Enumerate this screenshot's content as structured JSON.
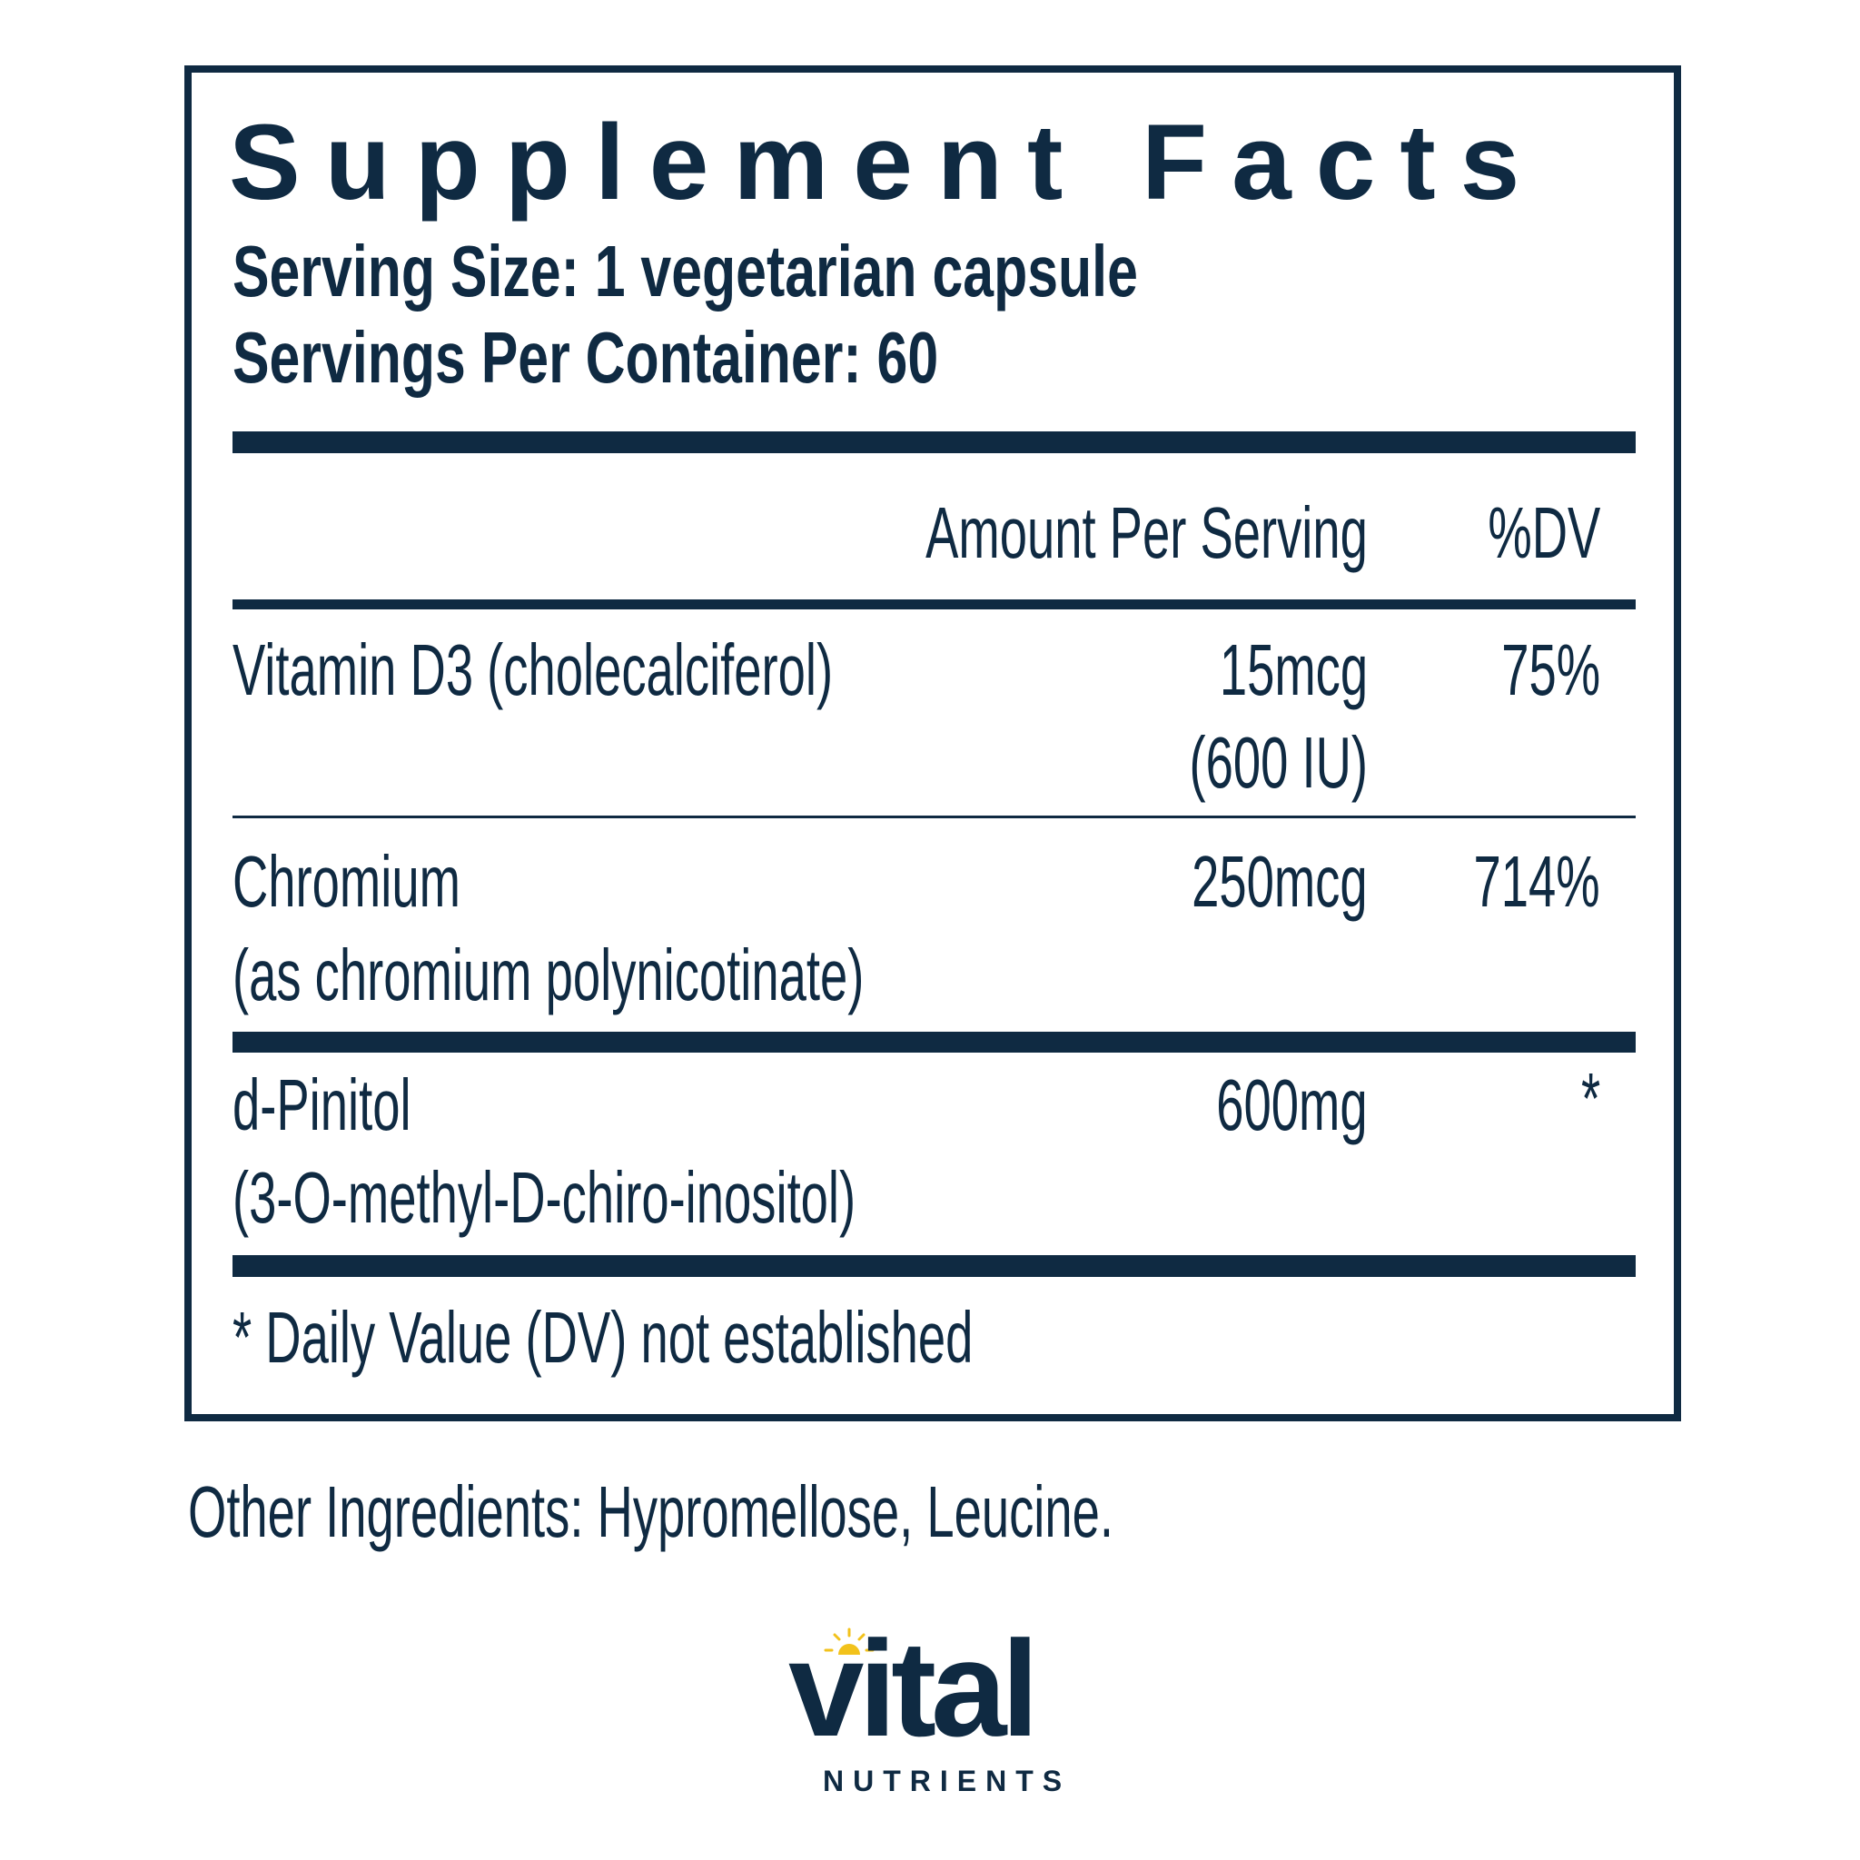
{
  "title": "Supplement Facts",
  "serving_size": "Serving Size: 1 vegetarian capsule",
  "servings_per_container": "Servings Per Container: 60",
  "header": {
    "amount": "Amount Per Serving",
    "dv": "%DV"
  },
  "rows": [
    {
      "name": "Vitamin D3 (cholecalciferol)",
      "sub": "",
      "amount": "15mcg",
      "amount2": "(600 IU)",
      "dv": "75%"
    },
    {
      "name": "Chromium",
      "sub": "(as chromium polynicotinate)",
      "amount": "250mcg",
      "dv": "714%"
    },
    {
      "name": "d-Pinitol",
      "sub": "(3-O-methyl-D-chiro-inositol)",
      "amount": "600mg",
      "dv": "*"
    }
  ],
  "footnote": "* Daily Value (DV) not established",
  "other_ingredients": "Other Ingredients: Hypromellose, Leucine.",
  "logo": {
    "word": "vital",
    "sub": "NUTRIENTS"
  },
  "colors": {
    "text": "#0f2a42",
    "sun": "#f2c21b"
  }
}
